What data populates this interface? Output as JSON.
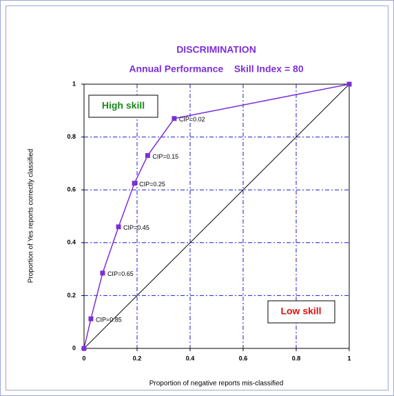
{
  "chart_data": {
    "type": "line",
    "title": "DISCRIMINATION",
    "subtitle": "Annual Performance    Skill Index = 80",
    "x_label": "Proportion of negative reports mis-classified",
    "y_label": "Proportion of Yes reports correctly classified",
    "x": [
      0,
      0.026,
      0.07,
      0.13,
      0.19,
      0.24,
      0.34,
      1
    ],
    "y": [
      0,
      0.112,
      0.285,
      0.46,
      0.625,
      0.73,
      0.87,
      1
    ],
    "point_labels": [
      null,
      "CIP=0.85",
      "CIP=0.65",
      "CIP=0.45",
      "CIP=0.25",
      "CIP=0.15",
      "CIP=0.02",
      null
    ],
    "color": "#7b2fd6",
    "xlim": [
      0,
      1
    ],
    "ylim": [
      0,
      1
    ],
    "xticks": [
      0,
      0.2,
      0.4,
      0.6,
      0.8,
      1
    ],
    "yticks": [
      0,
      0.2,
      0.4,
      0.6,
      0.8,
      1
    ],
    "grid": true,
    "annotations": [
      "High skill",
      "Low skill"
    ]
  }
}
